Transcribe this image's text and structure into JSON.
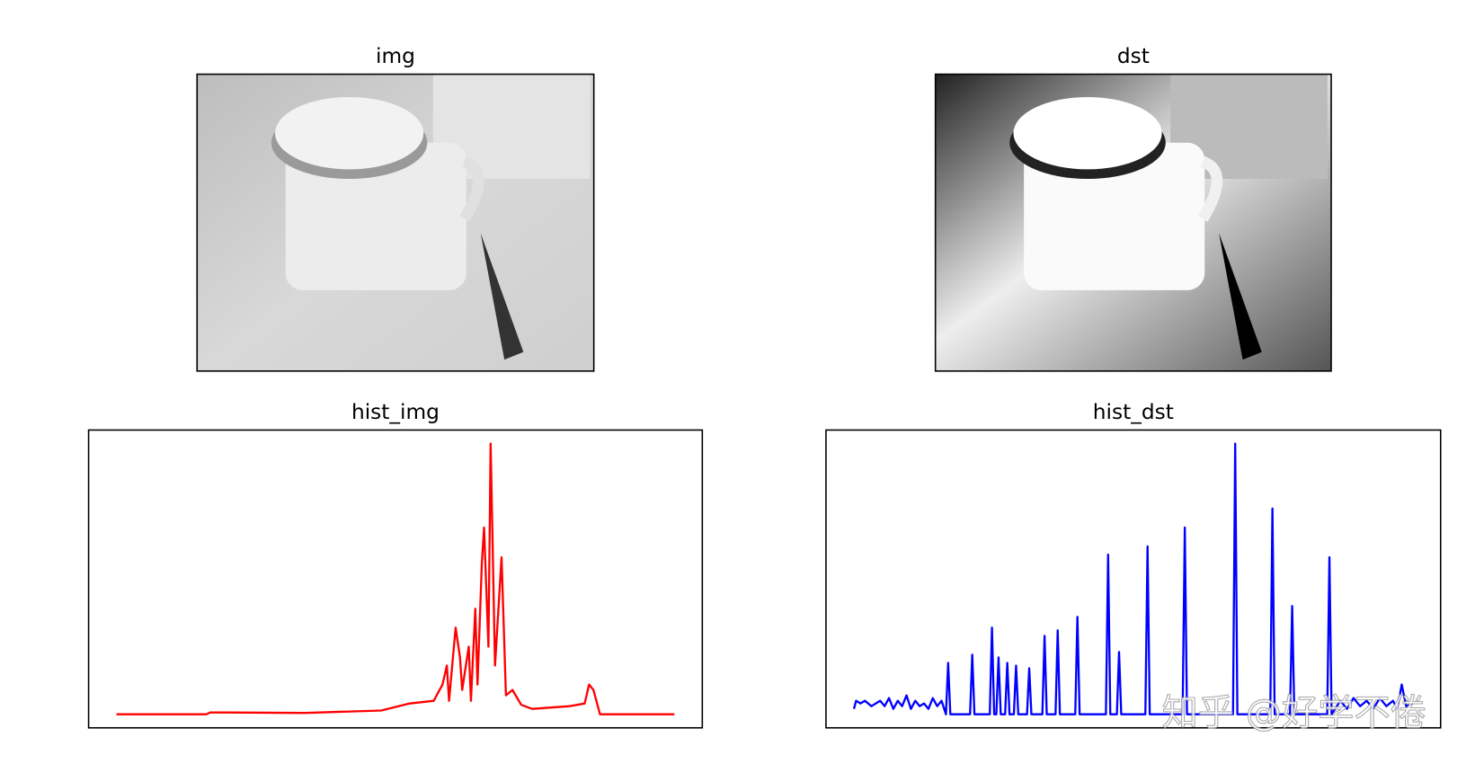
{
  "chart_data": [
    {
      "type": "image",
      "title": "img"
    },
    {
      "type": "image",
      "title": "dst"
    },
    {
      "type": "line",
      "title": "hist_img",
      "color": "#ff0000",
      "x": [
        0,
        41,
        43,
        86,
        121,
        134,
        145,
        149,
        151,
        152,
        155,
        157,
        158,
        161,
        162,
        164,
        165,
        167,
        168,
        170,
        171,
        173,
        176,
        178,
        181,
        185,
        190,
        207,
        214,
        216,
        218,
        221,
        255
      ],
      "values": [
        0,
        0,
        0.7,
        0.5,
        1.4,
        4,
        5,
        11,
        18,
        5,
        32,
        21,
        9,
        25,
        5,
        39,
        11,
        56,
        69,
        25,
        100,
        18,
        58,
        7,
        9,
        3.5,
        2,
        3,
        4,
        11,
        9,
        0,
        0
      ],
      "xlim": [
        -12.75,
        267.75
      ],
      "ylim": [
        -5,
        105
      ]
    },
    {
      "type": "line",
      "title": "hist_dst",
      "color": "#0000ff",
      "x": [
        0,
        1,
        3,
        5,
        8,
        10,
        12,
        14,
        16,
        18,
        20,
        22,
        24,
        26,
        28,
        30,
        32,
        34,
        36,
        38,
        40,
        42,
        43,
        44,
        53,
        54,
        55,
        62,
        63,
        64,
        65,
        66,
        67,
        69,
        70,
        71,
        73,
        74,
        75,
        79,
        80,
        81,
        86,
        87,
        88,
        92,
        93,
        94,
        101,
        102,
        103,
        115,
        116,
        117,
        120,
        121,
        122,
        133,
        134,
        135,
        150,
        151,
        152,
        173,
        174,
        175,
        190,
        191,
        192,
        199,
        200,
        201,
        216,
        217,
        218,
        222,
        225,
        228,
        231,
        234,
        237,
        240,
        243,
        246,
        248,
        250,
        252,
        255
      ],
      "values": [
        2,
        5,
        4,
        5,
        3,
        4,
        5,
        3,
        6,
        2,
        5,
        3,
        7,
        2,
        5,
        3,
        4,
        2,
        6,
        3,
        5,
        0,
        19,
        0,
        0,
        22,
        0,
        0,
        32,
        0,
        0,
        21,
        0,
        0,
        19,
        0,
        0,
        18,
        0,
        0,
        17,
        0,
        0,
        29,
        0,
        0,
        31,
        0,
        0,
        36,
        0,
        0,
        59,
        0,
        0,
        23,
        0,
        0,
        62,
        0,
        0,
        69,
        0,
        0,
        100,
        0,
        0,
        76,
        0,
        0,
        40,
        0,
        0,
        58,
        0,
        5,
        2,
        6,
        3,
        5,
        2,
        6,
        3,
        5,
        2,
        11,
        3,
        4
      ],
      "xlim": [
        -12.75,
        267.75
      ],
      "ylim": [
        -5,
        105
      ]
    }
  ],
  "watermark": "知乎 @好学不倦"
}
